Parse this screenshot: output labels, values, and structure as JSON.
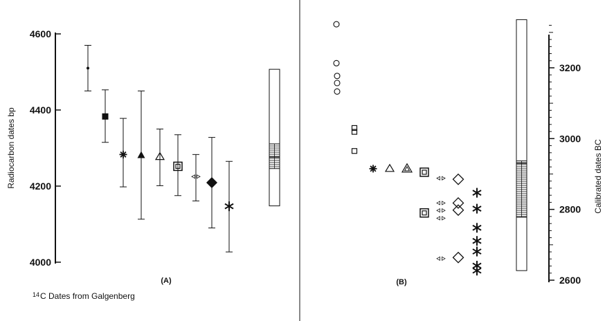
{
  "chart_data": [
    {
      "type": "scatter",
      "panel": "(A)",
      "caption": {
        "sup": "14",
        "main": "C  Dates from Galgenberg"
      },
      "ylabel": "Radiocarbon  dates  bp",
      "ylim": [
        4000,
        4600
      ],
      "yticks": [
        4000,
        4200,
        4400,
        4600
      ],
      "points": [
        {
          "marker": "dot",
          "y": 4510,
          "low": 4450,
          "high": 4570
        },
        {
          "marker": "filled-square",
          "y": 4383,
          "low": 4315,
          "high": 4453
        },
        {
          "marker": "star",
          "y": 4283,
          "low": 4198,
          "high": 4378
        },
        {
          "marker": "filled-triangle",
          "y": 4281,
          "low": 4113,
          "high": 4450
        },
        {
          "marker": "open-triangle",
          "y": 4277,
          "low": 4201,
          "high": 4350
        },
        {
          "marker": "boxed-square",
          "y": 4252,
          "low": 4175,
          "high": 4335
        },
        {
          "marker": "small-arrows",
          "y": 4225,
          "low": 4161,
          "high": 4283
        },
        {
          "marker": "filled-diamond",
          "y": 4209,
          "low": 4090,
          "high": 4328
        },
        {
          "marker": "asterisk",
          "y": 4147,
          "low": 4027,
          "high": 4265
        }
      ],
      "summary_bar": {
        "low": 4148,
        "high": 4507,
        "band_low": 4246,
        "band_high": 4311,
        "midline": 4276
      }
    },
    {
      "type": "scatter",
      "panel": "(B)",
      "ylabel": "Calibrated  dates  BC",
      "ylim": [
        2600,
        3300
      ],
      "yticks": [
        2600,
        2800,
        3000,
        3200
      ],
      "markers": [
        {
          "marker": "circle",
          "points": [
            3323,
            3213,
            3177,
            3157,
            3133
          ]
        },
        {
          "marker": "square",
          "points": [
            3030,
            3019,
            2965
          ]
        },
        {
          "marker": "star",
          "points": [
            2915
          ]
        },
        {
          "marker": "open-triangle",
          "points": [
            2915
          ]
        },
        {
          "marker": "boxed-triangle",
          "points": [
            2915
          ]
        },
        {
          "marker": "boxed-square",
          "points": [
            2905,
            2790
          ]
        },
        {
          "marker": "small-arrows",
          "points": [
            2888,
            2818,
            2797,
            2775,
            2661
          ]
        },
        {
          "marker": "diamond",
          "points": [
            2885,
            2818,
            2798,
            2664
          ]
        },
        {
          "marker": "asterisk",
          "points": [
            2847,
            2802,
            2748,
            2711,
            2681,
            2641,
            2627
          ]
        }
      ],
      "summary_bar": {
        "low": 2627,
        "high": 3336,
        "band_low": 2778,
        "band_high": 2937,
        "band_top_line": 2930
      }
    }
  ]
}
